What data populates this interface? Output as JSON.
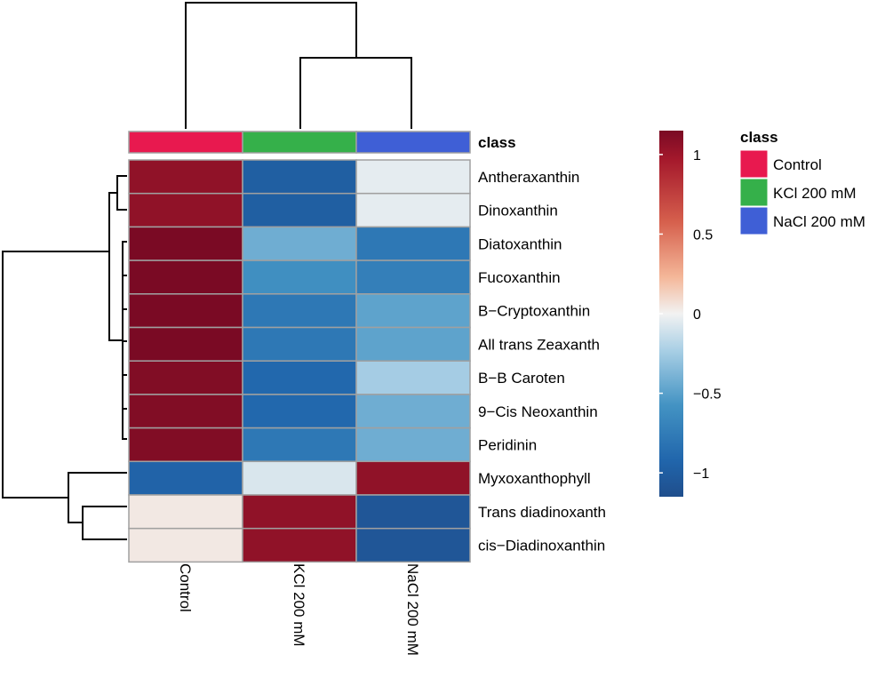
{
  "chart_data": {
    "type": "heatmap",
    "title": "",
    "columns": [
      "Control",
      "KCl 200 mM",
      "NaCl 200 mM"
    ],
    "rows": [
      "Antheraxanthin",
      "Dinoxanthin",
      "Diatoxanthin",
      "Fucoxanthin",
      "B−Cryptoxanthin",
      "All trans Zeaxanth",
      "B−B Caroten",
      "9−Cis Neoxanthin",
      "Peridinin",
      "Myxoxanthophyll",
      "Trans diadinoxanth",
      "cis−Diadinoxanthin"
    ],
    "values": [
      [
        1.0,
        -0.95,
        -0.05
      ],
      [
        1.0,
        -0.95,
        -0.05
      ],
      [
        1.15,
        -0.45,
        -0.75
      ],
      [
        1.15,
        -0.6,
        -0.7
      ],
      [
        1.15,
        -0.75,
        -0.5
      ],
      [
        1.15,
        -0.75,
        -0.5
      ],
      [
        1.1,
        -0.85,
        -0.3
      ],
      [
        1.1,
        -0.85,
        -0.45
      ],
      [
        1.1,
        -0.75,
        -0.45
      ],
      [
        -0.9,
        -0.1,
        1.0
      ],
      [
        0.05,
        1.0,
        -1.05
      ],
      [
        0.05,
        1.0,
        -1.05
      ]
    ],
    "column_classes": [
      "Control",
      "KCl 200 mM",
      "NaCl 200 mM"
    ],
    "annotation_label": "class",
    "colorbar": {
      "min": -1.15,
      "max": 1.15,
      "ticks": [
        1,
        0.5,
        0,
        -0.5,
        -1
      ],
      "tick_labels": [
        "1",
        "0.5",
        "0",
        "−0.5",
        "−1"
      ],
      "low_color": "#1f4e8c",
      "mid_color": "#f2f2f2",
      "high_color": "#7a0a24"
    },
    "legend": {
      "title": "class",
      "entries": [
        {
          "label": "Control",
          "color": "#e8194f"
        },
        {
          "label": "KCl 200 mM",
          "color": "#35b04a"
        },
        {
          "label": "NaCl 200 mM",
          "color": "#3f5fd6"
        }
      ]
    },
    "column_dendrogram": "((KCl 200 mM, NaCl 200 mM), Control)",
    "row_dendrogram": "(((Antheraxanthin, Dinoxanthin), (Diatoxanthin, Fucoxanthin, B−Cryptoxanthin, All trans Zeaxanth, B−B Caroten, 9−Cis Neoxanthin, Peridinin)), (Myxoxanthophyll, (Trans diadinoxanth, cis−Diadinoxanthin)))"
  }
}
